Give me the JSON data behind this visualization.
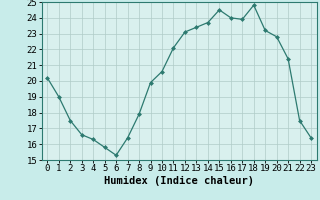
{
  "x": [
    0,
    1,
    2,
    3,
    4,
    5,
    6,
    7,
    8,
    9,
    10,
    11,
    12,
    13,
    14,
    15,
    16,
    17,
    18,
    19,
    20,
    21,
    22,
    23
  ],
  "y": [
    20.2,
    19.0,
    17.5,
    16.6,
    16.3,
    15.8,
    15.3,
    16.4,
    17.9,
    19.9,
    20.6,
    22.1,
    23.1,
    23.4,
    23.7,
    24.5,
    24.0,
    23.9,
    24.8,
    23.2,
    22.8,
    21.4,
    17.5,
    16.4
  ],
  "xlabel": "Humidex (Indice chaleur)",
  "ylabel": "",
  "xlim": [
    -0.5,
    23.5
  ],
  "ylim": [
    15,
    25
  ],
  "yticks": [
    15,
    16,
    17,
    18,
    19,
    20,
    21,
    22,
    23,
    24,
    25
  ],
  "xticks": [
    0,
    1,
    2,
    3,
    4,
    5,
    6,
    7,
    8,
    9,
    10,
    11,
    12,
    13,
    14,
    15,
    16,
    17,
    18,
    19,
    20,
    21,
    22,
    23
  ],
  "line_color": "#2d7a70",
  "marker": "D",
  "marker_size": 2.5,
  "bg_color": "#c8ecea",
  "plot_bg": "#d9f0ee",
  "grid_color": "#b0ccc8",
  "spine_color": "#2d7a70",
  "tick_fontsize": 6.5,
  "label_fontsize": 7.5
}
